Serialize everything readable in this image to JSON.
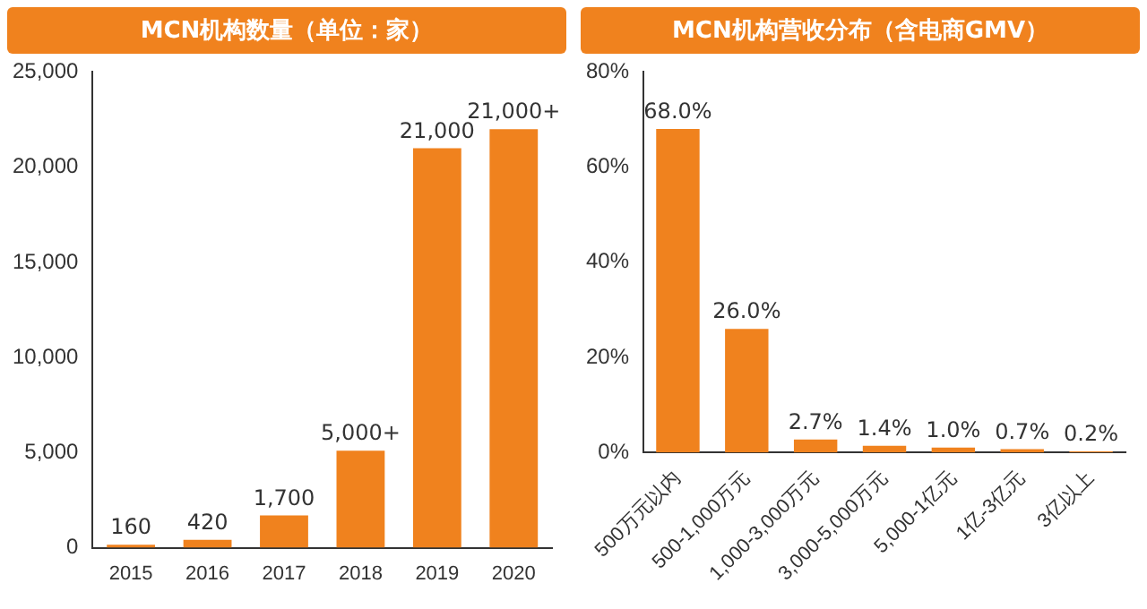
{
  "chart_data": [
    {
      "type": "bar",
      "title": "MCN机构数量（单位：家）",
      "categories": [
        "2015",
        "2016",
        "2017",
        "2018",
        "2019",
        "2020"
      ],
      "values": [
        160,
        420,
        1700,
        5100,
        21000,
        22000
      ],
      "value_labels": [
        "160",
        "420",
        "1,700",
        "5,000+",
        "21,000",
        "21,000+"
      ],
      "color": "#f0821e",
      "ylim": [
        0,
        25000
      ],
      "yticks": [
        {
          "value": 0,
          "label": "0"
        },
        {
          "value": 5000,
          "label": "5,000"
        },
        {
          "value": 10000,
          "label": "10,000"
        },
        {
          "value": 15000,
          "label": "15,000"
        },
        {
          "value": 20000,
          "label": "20,000"
        },
        {
          "value": 25000,
          "label": "25,000"
        }
      ],
      "grid": false,
      "legend": false
    },
    {
      "type": "bar",
      "title": "MCN机构营收分布（含电商GMV）",
      "categories": [
        "500万元以内",
        "500-1,000万元",
        "1,000-3,000万元",
        "3,000-5,000万元",
        "5,000-1亿元",
        "1亿-3亿元",
        "3亿以上"
      ],
      "values": [
        68.0,
        26.0,
        2.7,
        1.4,
        1.0,
        0.7,
        0.2
      ],
      "value_labels": [
        "68.0%",
        "26.0%",
        "2.7%",
        "1.4%",
        "1.0%",
        "0.7%",
        "0.2%"
      ],
      "color": "#f0821e",
      "ylim": [
        0,
        80
      ],
      "yticks": [
        {
          "value": 0,
          "label": "0%"
        },
        {
          "value": 20,
          "label": "20%"
        },
        {
          "value": 40,
          "label": "40%"
        },
        {
          "value": 60,
          "label": "60%"
        },
        {
          "value": 80,
          "label": "80%"
        }
      ],
      "grid": false,
      "legend": false
    }
  ]
}
